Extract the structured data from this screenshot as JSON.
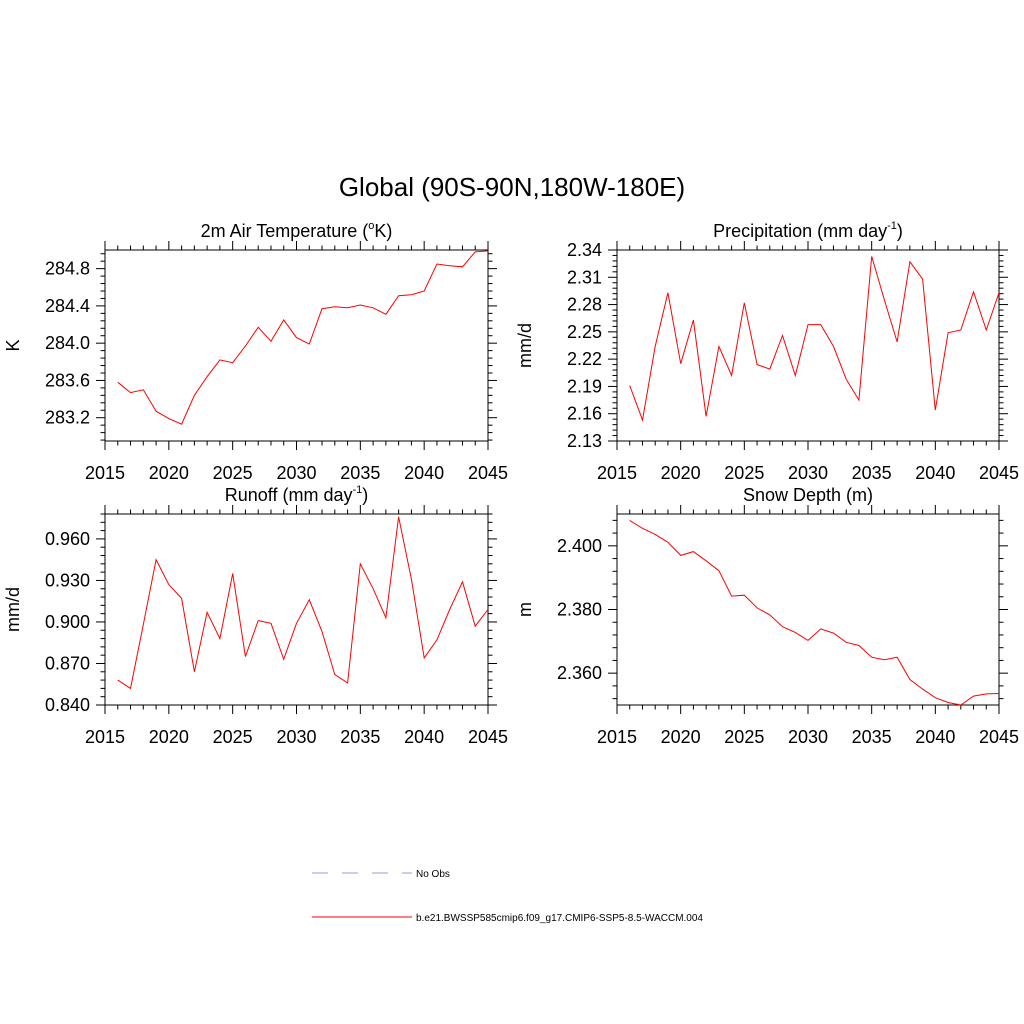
{
  "figure": {
    "title": "Global (90S-90N,180W-180E)"
  },
  "chart_data": [
    {
      "id": "temp",
      "type": "line",
      "title_main": "2m Air Temperature (",
      "title_sup": "o",
      "title_end": "K)",
      "ylabel": "K",
      "xlim": [
        2015,
        2045
      ],
      "ylim": [
        282.95,
        285.0
      ],
      "xticks": [
        2015,
        2020,
        2025,
        2030,
        2035,
        2040,
        2045
      ],
      "yticks": [
        "283.2",
        "283.6",
        "284.0",
        "284.4",
        "284.8"
      ],
      "x": [
        2016,
        2017,
        2018,
        2019,
        2020,
        2021,
        2022,
        2023,
        2024,
        2025,
        2026,
        2027,
        2028,
        2029,
        2030,
        2031,
        2032,
        2033,
        2034,
        2035,
        2036,
        2037,
        2038,
        2039,
        2040,
        2041,
        2042,
        2043,
        2044,
        2045
      ],
      "series": [
        {
          "color": "#ff0000",
          "values": [
            283.58,
            283.47,
            283.5,
            283.27,
            283.19,
            283.13,
            283.44,
            283.64,
            283.82,
            283.79,
            283.97,
            284.17,
            284.02,
            284.25,
            284.06,
            283.99,
            284.37,
            284.39,
            284.38,
            284.41,
            284.38,
            284.31,
            284.51,
            284.52,
            284.56,
            284.85,
            284.83,
            284.82,
            284.98,
            284.99
          ]
        }
      ]
    },
    {
      "id": "precip",
      "type": "line",
      "title_main": "Precipitation (mm day",
      "title_sup": "-1",
      "title_end": ")",
      "ylabel": "mm/d",
      "xlim": [
        2015,
        2045
      ],
      "ylim": [
        2.13,
        2.34
      ],
      "xticks": [
        2015,
        2020,
        2025,
        2030,
        2035,
        2040,
        2045
      ],
      "yticks": [
        "2.13",
        "2.16",
        "2.19",
        "2.22",
        "2.25",
        "2.28",
        "2.31",
        "2.34"
      ],
      "x": [
        2016,
        2017,
        2018,
        2019,
        2020,
        2021,
        2022,
        2023,
        2024,
        2025,
        2026,
        2027,
        2028,
        2029,
        2030,
        2031,
        2032,
        2033,
        2034,
        2035,
        2036,
        2037,
        2038,
        2039,
        2040,
        2041,
        2042,
        2043,
        2044,
        2045
      ],
      "series": [
        {
          "color": "#ff0000",
          "values": [
            2.191,
            2.153,
            2.234,
            2.293,
            2.215,
            2.263,
            2.157,
            2.234,
            2.202,
            2.282,
            2.214,
            2.209,
            2.246,
            2.202,
            2.258,
            2.258,
            2.234,
            2.198,
            2.175,
            2.333,
            2.285,
            2.239,
            2.327,
            2.308,
            2.164,
            2.249,
            2.252,
            2.294,
            2.252,
            2.293
          ]
        }
      ]
    },
    {
      "id": "runoff",
      "type": "line",
      "title_main": "Runoff (mm day",
      "title_sup": "-1",
      "title_end": ")",
      "ylabel": "mm/d",
      "xlim": [
        2015,
        2045
      ],
      "ylim": [
        0.84,
        0.978
      ],
      "xticks": [
        2015,
        2020,
        2025,
        2030,
        2035,
        2040,
        2045
      ],
      "yticks": [
        "0.840",
        "0.870",
        "0.900",
        "0.930",
        "0.960"
      ],
      "x": [
        2016,
        2017,
        2018,
        2019,
        2020,
        2021,
        2022,
        2023,
        2024,
        2025,
        2026,
        2027,
        2028,
        2029,
        2030,
        2031,
        2032,
        2033,
        2034,
        2035,
        2036,
        2037,
        2038,
        2039,
        2040,
        2041,
        2042,
        2043,
        2044,
        2045
      ],
      "series": [
        {
          "color": "#ff0000",
          "values": [
            0.858,
            0.852,
            0.898,
            0.945,
            0.927,
            0.917,
            0.864,
            0.907,
            0.888,
            0.935,
            0.875,
            0.901,
            0.899,
            0.873,
            0.899,
            0.916,
            0.893,
            0.862,
            0.856,
            0.942,
            0.924,
            0.903,
            0.976,
            0.931,
            0.874,
            0.887,
            0.909,
            0.929,
            0.897,
            0.909
          ]
        }
      ]
    },
    {
      "id": "snow",
      "type": "line",
      "title_main": "Snow Depth (m)",
      "title_sup": "",
      "title_end": "",
      "ylabel": "m",
      "xlim": [
        2015,
        2045
      ],
      "ylim": [
        2.35,
        2.41
      ],
      "xticks": [
        2015,
        2020,
        2025,
        2030,
        2035,
        2040,
        2045
      ],
      "yticks": [
        "2.360",
        "2.380",
        "2.400"
      ],
      "x": [
        2016,
        2017,
        2018,
        2019,
        2020,
        2021,
        2022,
        2023,
        2024,
        2025,
        2026,
        2027,
        2028,
        2029,
        2030,
        2031,
        2032,
        2033,
        2034,
        2035,
        2036,
        2037,
        2038,
        2039,
        2040,
        2041,
        2042,
        2043,
        2044,
        2045
      ],
      "series": [
        {
          "color": "#ff0000",
          "values": [
            2.408,
            2.4055,
            2.4036,
            2.4011,
            2.397,
            2.3982,
            2.3953,
            2.3922,
            2.3842,
            2.3845,
            2.3805,
            2.3783,
            2.3746,
            2.3728,
            2.3703,
            2.3739,
            2.3726,
            2.3697,
            2.3687,
            2.365,
            2.3642,
            2.365,
            2.358,
            2.355,
            2.3523,
            2.3508,
            2.35,
            2.3528,
            2.3535,
            2.3536
          ]
        }
      ]
    }
  ],
  "legend": {
    "items": [
      {
        "label": "No Obs",
        "color": "#9999dd",
        "dash": "dashed"
      },
      {
        "label": "b.e21.BWSSP585cmip6.f09_g17.CMIP6-SSP5-8.5-WACCM.004",
        "color": "#ff0000",
        "dash": "solid"
      }
    ]
  }
}
